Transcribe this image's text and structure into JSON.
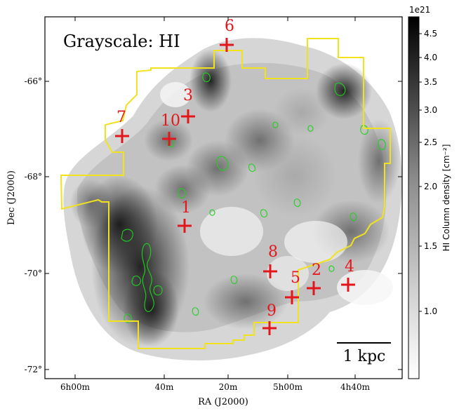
{
  "figure": {
    "panel_title": "Grayscale: HI",
    "xlabel": "RA (J2000)",
    "ylabel": "Dec (J2000)",
    "x_ticks": [
      "6h00m",
      "40m",
      "20m",
      "5h00m",
      "4h40m"
    ],
    "y_ticks": [
      "-66°",
      "-68°",
      "-70°",
      "-72°"
    ],
    "scale_bar_label": "1 kpc",
    "colorbar": {
      "label": "HI Column density [cm⁻²]",
      "multiplier": "1e21",
      "ticks": [
        "4.5",
        "4.0",
        "3.5",
        "3.0",
        "2.5",
        "2.0",
        "1.5",
        "1.0"
      ],
      "scale": "log"
    },
    "markers": [
      {
        "label": "1"
      },
      {
        "label": "2"
      },
      {
        "label": "3"
      },
      {
        "label": "4"
      },
      {
        "label": "5"
      },
      {
        "label": "6"
      },
      {
        "label": "7"
      },
      {
        "label": "8"
      },
      {
        "label": "9"
      },
      {
        "label": "10"
      }
    ],
    "colors": {
      "marker": "#e3161b",
      "footprint": "#f2e21d",
      "contours": "#1fd11f"
    }
  }
}
